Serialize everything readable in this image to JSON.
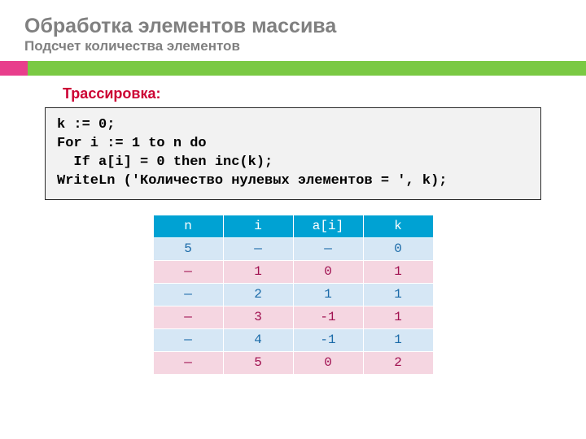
{
  "colors": {
    "title": "#808080",
    "stripe_pink": "#e83e8c",
    "stripe_green": "#7ac943",
    "trace_label": "#cc0033",
    "code_bg": "#f2f2f2",
    "table_header_bg": "#00a2d3",
    "row_blue": "#d6e7f5",
    "row_pink": "#f5d6e1",
    "cell_text_blue": "#1a6aa8",
    "cell_text_pink": "#a01050"
  },
  "title": "Обработка элементов массива",
  "subtitle": "Подсчет количества элементов",
  "trace_label": "Трассировка:",
  "code_lines": [
    "k := 0;",
    "For i := 1 to n do",
    "  If a[i] = 0 then inc(k);",
    "WriteLn ('Количество нулевых элементов = ', k);"
  ],
  "table": {
    "columns": [
      "n",
      "i",
      "a[i]",
      "k"
    ],
    "rows": [
      {
        "cells": [
          "5",
          "—",
          "—",
          "0"
        ],
        "style": "blue"
      },
      {
        "cells": [
          "—",
          "1",
          "0",
          "1"
        ],
        "style": "pink"
      },
      {
        "cells": [
          "—",
          "2",
          "1",
          "1"
        ],
        "style": "blue"
      },
      {
        "cells": [
          "—",
          "3",
          "-1",
          "1"
        ],
        "style": "pink"
      },
      {
        "cells": [
          "—",
          "4",
          "-1",
          "1"
        ],
        "style": "blue"
      },
      {
        "cells": [
          "—",
          "5",
          "0",
          "2"
        ],
        "style": "pink"
      }
    ]
  }
}
